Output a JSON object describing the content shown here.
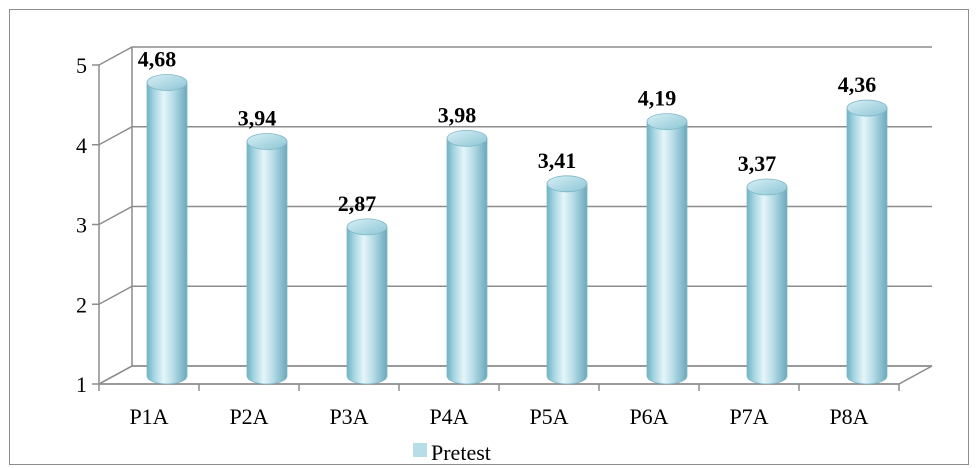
{
  "chart_data": {
    "type": "bar",
    "style": "3d-cylinder",
    "categories": [
      "P1A",
      "P2A",
      "P3A",
      "P4A",
      "P5A",
      "P6A",
      "P7A",
      "P8A"
    ],
    "series": [
      {
        "name": "Pretest",
        "values": [
          4.68,
          3.94,
          2.87,
          3.98,
          3.41,
          4.19,
          3.37,
          4.36
        ],
        "data_labels": [
          "4,68",
          "3,94",
          "2,87",
          "3,98",
          "3,41",
          "4,19",
          "3,37",
          "4,36"
        ],
        "color": "#b7dde8"
      }
    ],
    "y_ticks": [
      "1",
      "2",
      "3",
      "4",
      "5"
    ],
    "ylim": [
      1,
      5
    ],
    "grid": true,
    "legend": {
      "position": "bottom",
      "label": "Pretest"
    },
    "title": "",
    "xlabel": "",
    "ylabel": ""
  },
  "colors": {
    "bar_fill": "#b7dde8",
    "bar_edge": "#7fb6c6",
    "grid": "#8c8c8c",
    "frame": "#8c8c8c"
  }
}
